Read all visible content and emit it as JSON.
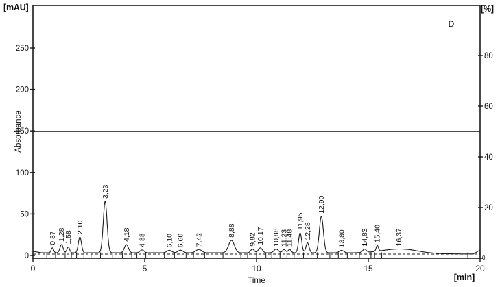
{
  "labels": {
    "left_axis_unit": "[mAU]",
    "right_axis_unit": "[%]",
    "x_axis_unit": "[min]",
    "x_axis_title": "Time",
    "y_axis_title": "Absorbance",
    "annotation": "D"
  },
  "colors": {
    "line": "#1a1a1a",
    "frame": "#1a1a1a",
    "gradient_line": "#333333",
    "background": "#ffffff"
  },
  "chart_data": {
    "type": "line",
    "title": "",
    "xlabel": "Time",
    "x_unit": "min",
    "ylabel_left": "Absorbance",
    "y_left_unit": "mAU",
    "y_right_unit": "%",
    "xlim": [
      0,
      20
    ],
    "ylim_left": [
      0,
      300
    ],
    "ylim_right": [
      0,
      100
    ],
    "x_ticks": [
      0,
      5,
      10,
      15,
      20
    ],
    "y_left_ticks": [
      0,
      50,
      100,
      150,
      200,
      250
    ],
    "y_right_ticks": [
      0,
      20,
      40,
      60,
      80
    ],
    "grid": false,
    "annotation": "D",
    "gradient_line_percent": 50,
    "dashed_baseline_mau": 1.6,
    "peaks": [
      {
        "label": "0,87",
        "t": 0.87,
        "height_mau": 6,
        "width": 0.055
      },
      {
        "label": "1,28",
        "t": 1.28,
        "height_mau": 10,
        "width": 0.07
      },
      {
        "label": "1,58",
        "t": 1.58,
        "height_mau": 7,
        "width": 0.06
      },
      {
        "label": "2,10",
        "t": 2.1,
        "height_mau": 19,
        "width": 0.07
      },
      {
        "label": "3,23",
        "t": 3.23,
        "height_mau": 62,
        "width": 0.085
      },
      {
        "label": "4,18",
        "t": 4.18,
        "height_mau": 10,
        "width": 0.09
      },
      {
        "label": "4,88",
        "t": 4.88,
        "height_mau": 3.5,
        "width": 0.09
      },
      {
        "label": "6,10",
        "t": 6.1,
        "height_mau": 3,
        "width": 0.11
      },
      {
        "label": "6,60",
        "t": 6.6,
        "height_mau": 3.2,
        "width": 0.11
      },
      {
        "label": "7,42",
        "t": 7.42,
        "height_mau": 4,
        "width": 0.13
      },
      {
        "label": "8,88",
        "t": 8.88,
        "height_mau": 15,
        "width": 0.13
      },
      {
        "label": "9,82",
        "t": 9.82,
        "height_mau": 4.5,
        "width": 0.08
      },
      {
        "label": "10,17",
        "t": 10.17,
        "height_mau": 6,
        "width": 0.09
      },
      {
        "label": "10,88",
        "t": 10.88,
        "height_mau": 4.5,
        "width": 0.1
      },
      {
        "label": "11,23",
        "t": 11.23,
        "height_mau": 4,
        "width": 0.07
      },
      {
        "label": "11,48",
        "t": 11.48,
        "height_mau": 4,
        "width": 0.07
      },
      {
        "label": "11,95",
        "t": 11.95,
        "height_mau": 24,
        "width": 0.07
      },
      {
        "label": "12,28",
        "t": 12.28,
        "height_mau": 12,
        "width": 0.07
      },
      {
        "label": "12,90",
        "t": 12.9,
        "height_mau": 44,
        "width": 0.09
      },
      {
        "label": "13,80",
        "t": 13.8,
        "height_mau": 3,
        "width": 0.1
      },
      {
        "label": "14,83",
        "t": 14.83,
        "height_mau": 4,
        "width": 0.08
      },
      {
        "label": "15,40",
        "t": 15.4,
        "height_mau": 7,
        "width": 0.05
      },
      {
        "label": "16,37",
        "t": 16.37,
        "height_mau": 4.5,
        "width": 0.75
      }
    ],
    "baseline_mau": [
      [
        0,
        5.0
      ],
      [
        0.4,
        3.2
      ],
      [
        15.5,
        3.2
      ],
      [
        16.9,
        3.4
      ],
      [
        17.6,
        2.6
      ],
      [
        18.4,
        2.0
      ],
      [
        19.3,
        1.8
      ],
      [
        19.7,
        1.8
      ],
      [
        20,
        6.5
      ]
    ],
    "integration_tick_times": [
      0.62,
      1.01,
      1.44,
      1.72,
      1.95,
      2.28,
      2.6,
      3.02,
      3.55,
      4.0,
      4.42,
      4.65,
      5.05,
      5.88,
      6.33,
      6.85,
      7.18,
      7.68,
      8.5,
      9.3,
      9.6,
      10.0,
      10.42,
      10.68,
      11.05,
      11.36,
      11.68,
      12.1,
      12.44,
      12.72,
      13.28,
      13.66,
      14.06,
      14.6,
      15.12,
      15.28,
      15.6,
      19.45
    ]
  }
}
